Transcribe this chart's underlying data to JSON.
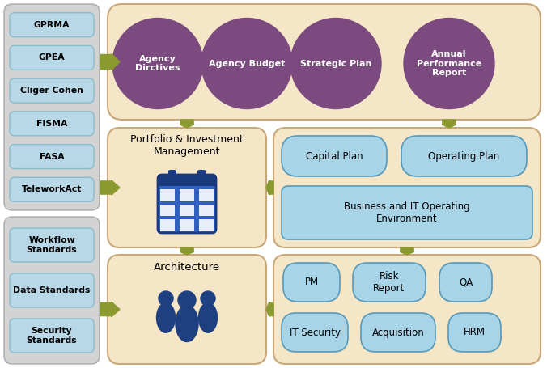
{
  "bg_color": "#ffffff",
  "left_panel_bg": "#d3d3d3",
  "left_box_color": "#b8d8e8",
  "left_items_top": [
    "GPRMA",
    "GPEA",
    "Cliger Cohen",
    "FISMA",
    "FASA",
    "TeleworkAct"
  ],
  "left_items_bottom": [
    "Workflow\nStandards",
    "Data Standards",
    "Security\nStandards"
  ],
  "peach_bg": "#f5e6c8",
  "peach_edge": "#c8a878",
  "circle_color": "#7b4a7e",
  "circle_labels": [
    "Agency\nDirctives",
    "Agency Budget",
    "Strategic Plan",
    "Annual\nPerformance\nReport"
  ],
  "blue_box_color": "#a8d4e8",
  "blue_box_edge": "#5599bb",
  "mid_left_label": "Portfolio & Investment\nManagement",
  "mid_right_box1": "Capital Plan",
  "mid_right_box2": "Operating Plan",
  "mid_right_wide": "Business and IT Operating\nEnvironment",
  "bottom_left_label": "Architecture",
  "br_row1": [
    "PM",
    "Risk\nReport",
    "QA"
  ],
  "br_row2": [
    "IT Security",
    "Acquisition",
    "HRM"
  ],
  "arrow_color": "#8a9a30",
  "cal_blue": "#3060c0",
  "cal_dark": "#1a3a80",
  "people_color": "#1e4080"
}
